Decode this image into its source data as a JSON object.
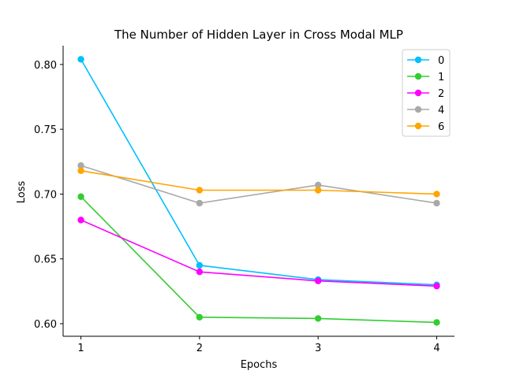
{
  "chart_data": {
    "type": "line",
    "title": "The Number of Hidden Layer in Cross Modal MLP",
    "xlabel": "Epochs",
    "ylabel": "Loss",
    "x": [
      1,
      2,
      3,
      4
    ],
    "xticks": [
      "1",
      "2",
      "3",
      "4"
    ],
    "yticks": [
      "0.60",
      "0.65",
      "0.70",
      "0.75",
      "0.80"
    ],
    "xlim": [
      0.85,
      4.15
    ],
    "ylim": [
      0.5903,
      0.8145
    ],
    "grid": false,
    "legend_position": "top-right",
    "series": [
      {
        "name": "0",
        "color": "#00bfff",
        "values": [
          0.804,
          0.645,
          0.634,
          0.63
        ]
      },
      {
        "name": "1",
        "color": "#32cd32",
        "values": [
          0.698,
          0.605,
          0.604,
          0.601
        ]
      },
      {
        "name": "2",
        "color": "#ff00ff",
        "values": [
          0.68,
          0.64,
          0.633,
          0.629
        ]
      },
      {
        "name": "4",
        "color": "#a9a9a9",
        "values": [
          0.722,
          0.693,
          0.707,
          0.693
        ]
      },
      {
        "name": "6",
        "color": "#ffa500",
        "values": [
          0.718,
          0.703,
          0.703,
          0.7
        ]
      }
    ]
  }
}
